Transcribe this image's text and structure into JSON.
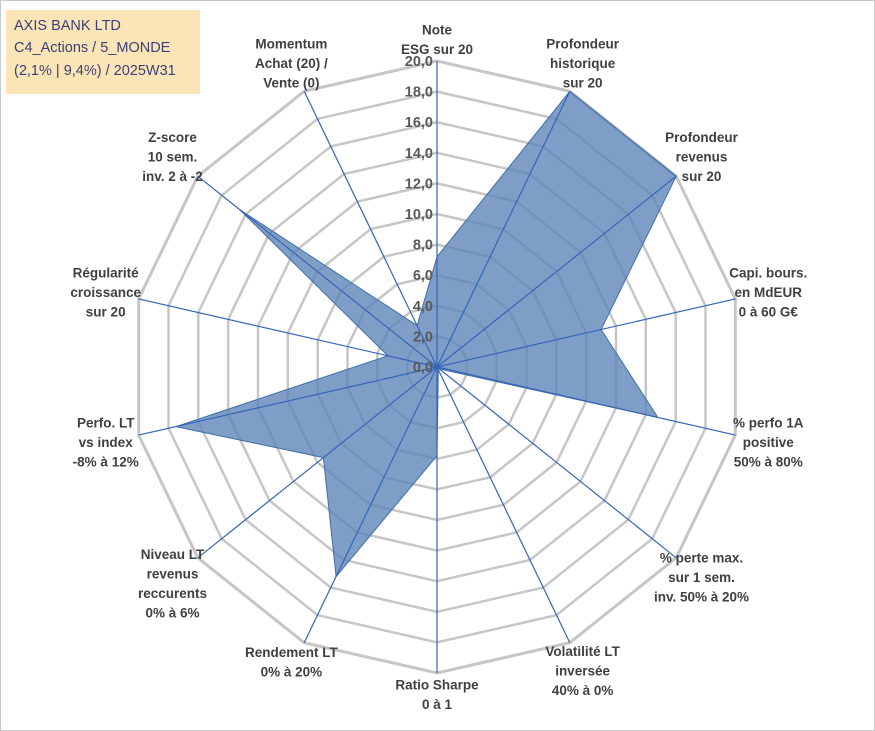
{
  "info_box": {
    "line1": "AXIS BANK LTD",
    "line2": "C4_Actions / 5_MONDE",
    "line3": "(2,1% | 9,4%) / 2025W31"
  },
  "colors": {
    "fill": "#5b83b7",
    "fill_opacity": 0.78,
    "series_stroke": "#3f6fa8",
    "axis_line": "#3565b8",
    "ring": "#c6c6c6",
    "info_box_bg": "#fbe5b6",
    "info_box_text": "#3b3f7a"
  },
  "chart_data": {
    "type": "radar",
    "r_range": [
      0,
      20
    ],
    "r_ticks": [
      "0,0",
      "2,0",
      "4,0",
      "6,0",
      "8,0",
      "10,0",
      "12,0",
      "14,0",
      "16,0",
      "18,0",
      "20,0"
    ],
    "grid": true,
    "axes": [
      {
        "label_lines": [
          "Note",
          "ESG sur 20"
        ],
        "value": 7.2
      },
      {
        "label_lines": [
          "Profondeur",
          "historique",
          "sur 20"
        ],
        "value": 20.0
      },
      {
        "label_lines": [
          "Profondeur",
          "revenus",
          "sur 20"
        ],
        "value": 20.0
      },
      {
        "label_lines": [
          "Capi. bours.",
          "en MdEUR",
          "0 à 60 G€"
        ],
        "value": 11.0
      },
      {
        "label_lines": [
          "% perfo 1A",
          "positive",
          "50% à 80%"
        ],
        "value": 14.8
      },
      {
        "label_lines": [
          "% perte max.",
          "sur 1 sem.",
          "inv. 50% à 20%"
        ],
        "value": 0.2
      },
      {
        "label_lines": [
          "Volatilité LT",
          "inversée",
          "40% à 0%"
        ],
        "value": 0.2
      },
      {
        "label_lines": [
          "Ratio Sharpe",
          "0 à 1"
        ],
        "value": 5.8
      },
      {
        "label_lines": [
          "Rendement LT",
          "0% à 20%"
        ],
        "value": 15.2
      },
      {
        "label_lines": [
          "Niveau LT",
          "revenus",
          "reccurents",
          "0% à 6%"
        ],
        "value": 9.5
      },
      {
        "label_lines": [
          "Perfo. LT",
          "vs index",
          "-8% à 12%"
        ],
        "value": 17.5
      },
      {
        "label_lines": [
          "Régularité",
          "croissance",
          "sur 20"
        ],
        "value": 3.3
      },
      {
        "label_lines": [
          "Z-score",
          "10 sem.",
          "inv. 2 à -2"
        ],
        "value": 16.5
      },
      {
        "label_lines": [
          "Momentum",
          "Achat (20) /",
          "Vente (0)"
        ],
        "value": 3.0
      }
    ]
  }
}
